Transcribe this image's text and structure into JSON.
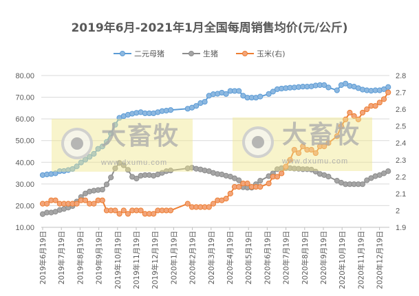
{
  "chart_data": {
    "type": "line",
    "title": "2019年6月-2021年1月全国每周销售均价(元/公斤)",
    "x_start": "2019年6月19日",
    "x_step": "week",
    "x_tick_labels": [
      "2019年6月19日",
      "2019年7月19日",
      "2019年8月19日",
      "2019年9月19日",
      "2019年10月19日",
      "2019年11月19日",
      "2019年12月19日",
      "2020年1月19日",
      "2020年2月19日",
      "2020年3月19日",
      "2020年4月19日",
      "2020年5月19日",
      "2020年6月19日",
      "2020年7月19日",
      "2020年8月19日",
      "2020年9月19日",
      "2020年10月19日",
      "2020年11月19日",
      "2020年12月19日"
    ],
    "y_left": {
      "min": 10,
      "max": 80,
      "step": 10,
      "tick_labels": [
        "10.00",
        "20.00",
        "30.00",
        "40.00",
        "50.00",
        "60.00",
        "70.00",
        "80.00"
      ]
    },
    "y_right": {
      "min": 1.9,
      "max": 2.8,
      "step": 0.1,
      "tick_labels": [
        "1.9",
        "2",
        "2.1",
        "2.2",
        "2.3",
        "2.4",
        "2.5",
        "2.6",
        "2.7",
        "2.8"
      ]
    },
    "grid": true,
    "legend_position": "top",
    "series": [
      {
        "name": "二元母猪",
        "axis": "left",
        "color": "#5B9BD5",
        "fill": "#8DB8E0",
        "values": [
          34.1,
          34.4,
          34.6,
          34.9,
          35.9,
          36.0,
          36.4,
          36.9,
          38.1,
          39.9,
          41.2,
          42.5,
          43.9,
          46.2,
          47.3,
          49.4,
          53.3,
          57.3,
          60.5,
          61.3,
          61.9,
          62.4,
          62.8,
          63.1,
          62.6,
          62.6,
          62.6,
          63.1,
          63.6,
          63.8,
          64.1,
          null,
          null,
          null,
          64.7,
          65.2,
          66.0,
          67.3,
          67.9,
          70.7,
          71.4,
          71.6,
          72.1,
          71.5,
          72.9,
          72.9,
          72.9,
          70.7,
          69.8,
          69.8,
          69.8,
          70.3,
          null,
          71.5,
          72.6,
          73.7,
          74.0,
          74.2,
          74.4,
          74.5,
          74.7,
          74.9,
          74.9,
          75.0,
          75.4,
          75.6,
          75.6,
          74.5,
          null,
          73.2,
          75.6,
          76.3,
          75.2,
          74.9,
          74.2,
          73.5,
          73.2,
          73.0,
          73.2,
          73.2,
          73.7,
          74.7
        ]
      },
      {
        "name": "生猪",
        "axis": "left",
        "color": "#8C8C8C",
        "fill": "#A5A5A5",
        "values": [
          16.1,
          16.8,
          16.8,
          17.2,
          18.0,
          18.5,
          19.1,
          19.8,
          21.9,
          24.0,
          25.6,
          26.5,
          26.9,
          27.2,
          27.4,
          29.8,
          33.0,
          37.2,
          39.7,
          38.6,
          36.5,
          33.3,
          32.5,
          33.8,
          34.1,
          34.1,
          33.8,
          34.4,
          35.1,
          35.9,
          36.2,
          null,
          null,
          null,
          37.2,
          37.5,
          37.0,
          36.7,
          36.2,
          35.9,
          35.1,
          34.6,
          34.4,
          33.8,
          33.4,
          32.6,
          31.7,
          28.5,
          28.3,
          28.3,
          29.9,
          31.5,
          null,
          33.6,
          34.9,
          36.8,
          37.3,
          37.3,
          37.3,
          37.1,
          37.0,
          36.8,
          36.8,
          36.6,
          35.7,
          34.6,
          34.1,
          33.4,
          null,
          31.5,
          30.6,
          29.9,
          29.9,
          29.9,
          29.9,
          29.9,
          31.7,
          32.7,
          33.6,
          34.1,
          34.9,
          35.9
        ]
      },
      {
        "name": "玉米(右)",
        "axis": "right",
        "color": "#ED7D31",
        "fill": "#F2A57A",
        "values": [
          2.04,
          2.04,
          2.06,
          2.06,
          2.04,
          2.04,
          2.04,
          2.04,
          2.04,
          2.06,
          2.06,
          2.04,
          2.04,
          2.06,
          2.06,
          2.0,
          2.0,
          2.0,
          1.98,
          2.0,
          1.98,
          2.0,
          2.0,
          2.0,
          1.98,
          1.98,
          1.98,
          2.0,
          2.0,
          2.0,
          2.0,
          null,
          null,
          null,
          2.04,
          2.02,
          2.02,
          2.02,
          2.02,
          2.02,
          2.04,
          2.06,
          2.06,
          2.07,
          2.1,
          2.14,
          2.14,
          2.16,
          2.16,
          2.14,
          2.14,
          2.14,
          null,
          2.16,
          2.2,
          2.2,
          2.22,
          2.26,
          2.3,
          2.36,
          2.34,
          2.38,
          2.36,
          2.36,
          2.34,
          2.38,
          2.38,
          2.4,
          null,
          2.44,
          2.5,
          2.54,
          2.58,
          2.56,
          2.54,
          2.58,
          2.6,
          2.62,
          2.62,
          2.64,
          2.66,
          2.7
        ]
      }
    ]
  },
  "watermark": {
    "brand": "大畜牧",
    "url": "www.dxumu.com"
  }
}
